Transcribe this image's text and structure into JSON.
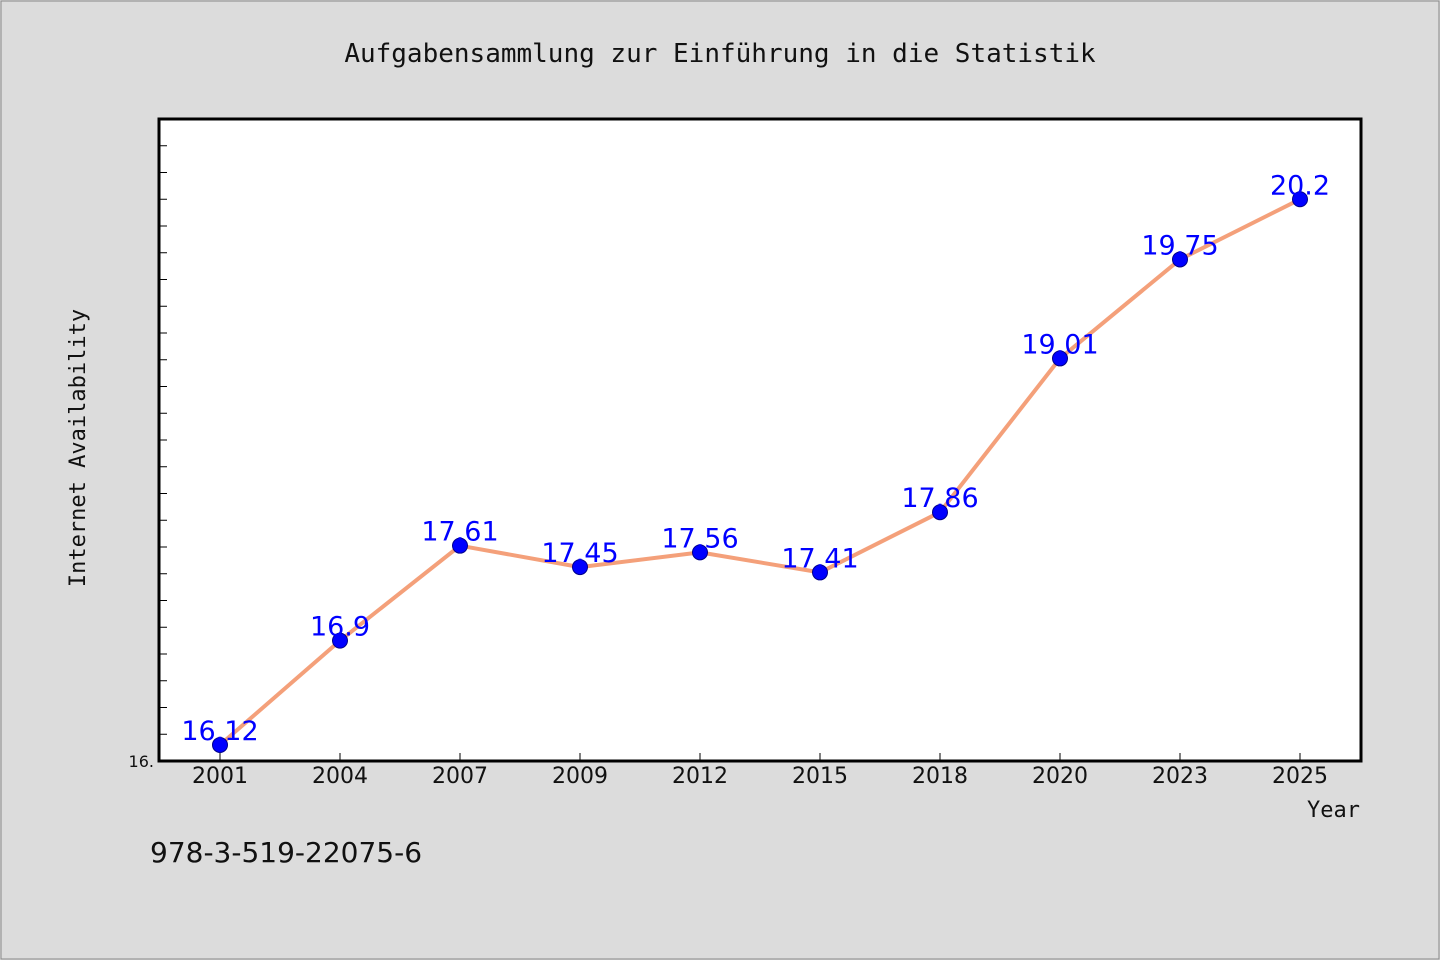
{
  "chart_data": {
    "type": "line",
    "title": "Aufgabensammlung zur Einführung in die Statistik",
    "xlabel": "Year",
    "ylabel": "Internet Availability",
    "categories": [
      "2001",
      "2004",
      "2007",
      "2009",
      "2012",
      "2015",
      "2018",
      "2020",
      "2023",
      "2025"
    ],
    "values": [
      16.12,
      16.9,
      17.61,
      17.45,
      17.56,
      17.41,
      17.86,
      19.01,
      19.75,
      20.2
    ],
    "data_labels": [
      "16.12",
      "16.9",
      "17.61",
      "17.45",
      "17.56",
      "17.41",
      "17.86",
      "19.01",
      "19.75",
      "20.2"
    ],
    "ylim": [
      16.0,
      20.8
    ],
    "ytick_label": "16.",
    "grid": false,
    "legend": "none",
    "line_color": "#f4a07a",
    "marker_color": "#0000ff"
  },
  "footer": {
    "isbn": "978-3-519-22075-6"
  }
}
